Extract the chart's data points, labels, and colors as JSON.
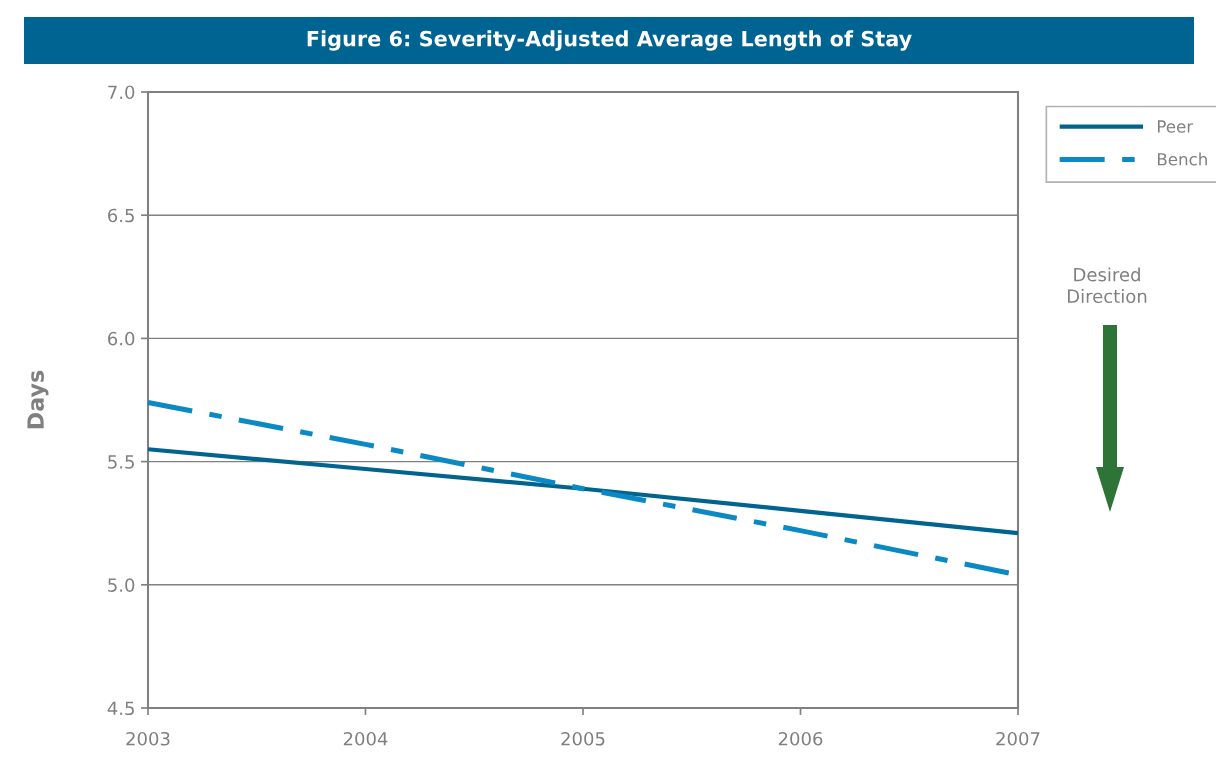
{
  "chart_data": {
    "type": "line",
    "title": "Figure 6: Severity-Adjusted Average Length of Stay",
    "ylabel": "Days",
    "x": [
      2003,
      2004,
      2005,
      2006,
      2007
    ],
    "series": [
      {
        "name": "Peer",
        "color": "#00648f",
        "line_style": "solid",
        "values": [
          5.55,
          5.47,
          5.39,
          5.3,
          5.21
        ]
      },
      {
        "name": "Bench",
        "color": "#0a89c4",
        "line_style": "dashed",
        "values": [
          5.74,
          5.57,
          5.39,
          5.22,
          5.04
        ]
      }
    ],
    "xlim": [
      2003,
      2007
    ],
    "xticks": [
      2003,
      2004,
      2005,
      2006,
      2007
    ],
    "ylim": [
      4.5,
      7.0
    ],
    "yticks": [
      {
        "value": 4.5,
        "label": "4.5"
      },
      {
        "value": 5,
        "label": "5.0"
      },
      {
        "value": 5.5,
        "label": "5.5"
      },
      {
        "value": 6,
        "label": "6.0"
      },
      {
        "value": 6.5,
        "label": "6.5"
      },
      {
        "value": 7,
        "label": "7.0"
      }
    ],
    "grid": "y",
    "legend": "top right",
    "marker": "none",
    "annotations": [
      "Desired Direction"
    ]
  }
}
